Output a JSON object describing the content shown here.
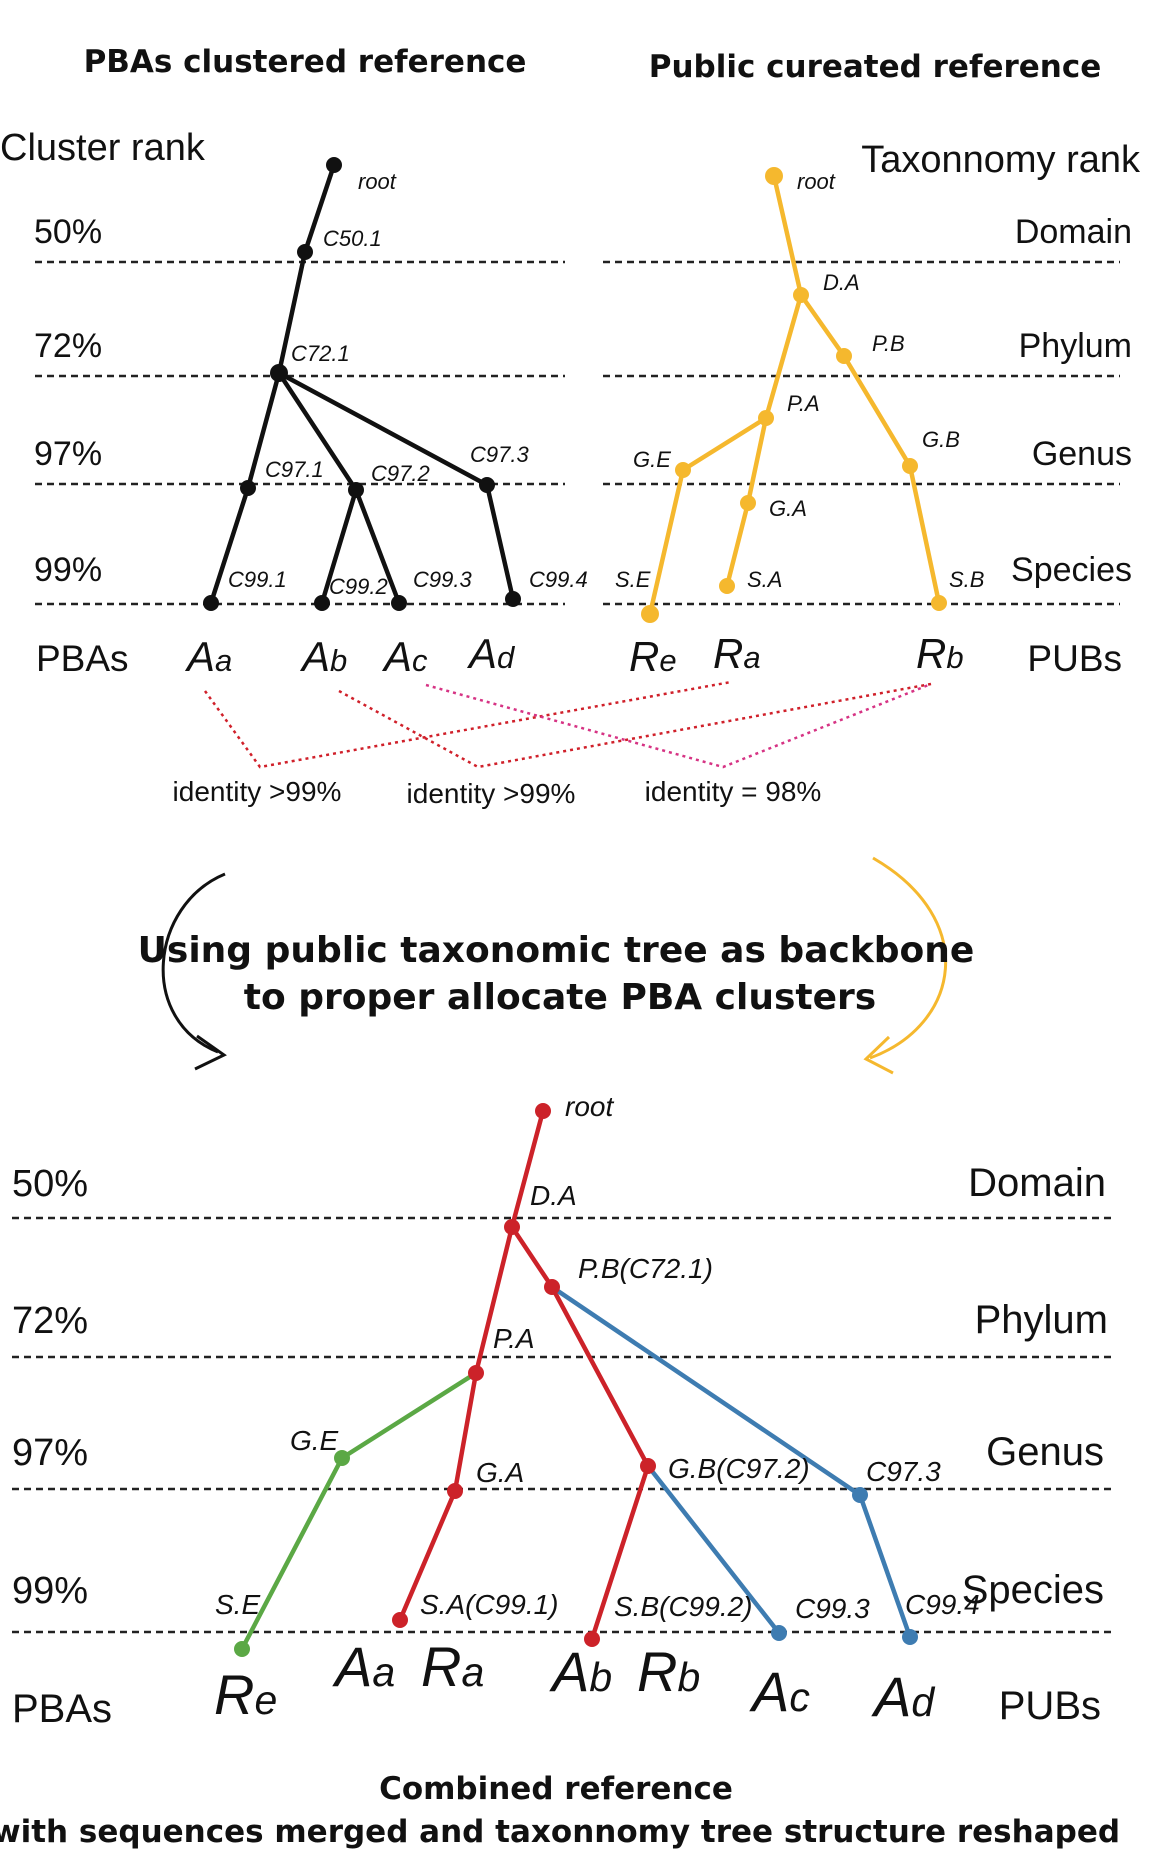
{
  "colors": {
    "black": "#111111",
    "orange": "#F5B82E",
    "red": "#CC2229",
    "green": "#5BA845",
    "blue": "#3E7CB1",
    "dotted_red": "#D0202A",
    "dotted_magenta": "#D63384"
  },
  "top": {
    "left_title": "PBAs clustered reference",
    "right_title": "Public cureated reference",
    "left_axis_title": "Cluster rank",
    "right_axis_title": "Taxonnomy rank",
    "ranks": [
      "50%",
      "72%",
      "97%",
      "99%"
    ],
    "right_ranks": [
      "Domain",
      "Phylum",
      "Genus",
      "Species"
    ],
    "left_nodes": [
      "root",
      "C50.1",
      "C72.1",
      "C97.1",
      "C97.2",
      "C97.3",
      "C99.1",
      "C99.2",
      "C99.3",
      "C99.4"
    ],
    "right_nodes": [
      "root",
      "D.A",
      "P.B",
      "P.A",
      "G.E",
      "G.B",
      "G.A",
      "S.E",
      "S.A",
      "S.B"
    ],
    "row_left_label": "PBAs",
    "row_right_label": "PUBs",
    "left_leaves": [
      {
        "main": "A",
        "sub": "a"
      },
      {
        "main": "A",
        "sub": "b"
      },
      {
        "main": "A",
        "sub": "c"
      },
      {
        "main": "A",
        "sub": "d"
      }
    ],
    "right_leaves": [
      {
        "main": "R",
        "sub": "e"
      },
      {
        "main": "R",
        "sub": "a"
      },
      {
        "main": "R",
        "sub": "b"
      }
    ],
    "identities": [
      "identity >99%",
      "identity >99%",
      "identity = 98%"
    ]
  },
  "middle": {
    "line1": "Using public taxonomic tree as backbone",
    "line2": "to proper allocate PBA clusters"
  },
  "bottom": {
    "ranks": [
      "50%",
      "72%",
      "97%",
      "99%"
    ],
    "right_ranks": [
      "Domain",
      "Phylum",
      "Genus",
      "Species"
    ],
    "nodes": [
      "root",
      "D.A",
      "P.B(C72.1)",
      "P.A",
      "G.E",
      "G.A",
      "G.B(C97.2)",
      "C97.3",
      "S.E",
      "S.A(C99.1)",
      "S.B(C99.2)",
      "C99.3",
      "C99.4"
    ],
    "row_left_label": "PBAs",
    "row_right_label": "PUBs",
    "leaves": [
      {
        "main": "R",
        "sub": "e"
      },
      {
        "main": "A",
        "sub": "a"
      },
      {
        "main": "R",
        "sub": "a"
      },
      {
        "main": "A",
        "sub": "b"
      },
      {
        "main": "R",
        "sub": "b"
      },
      {
        "main": "A",
        "sub": "c"
      },
      {
        "main": "A",
        "sub": "d"
      }
    ],
    "caption_line1": "Combined reference",
    "caption_line2": "with sequences merged and taxonnomy tree structure reshaped"
  }
}
